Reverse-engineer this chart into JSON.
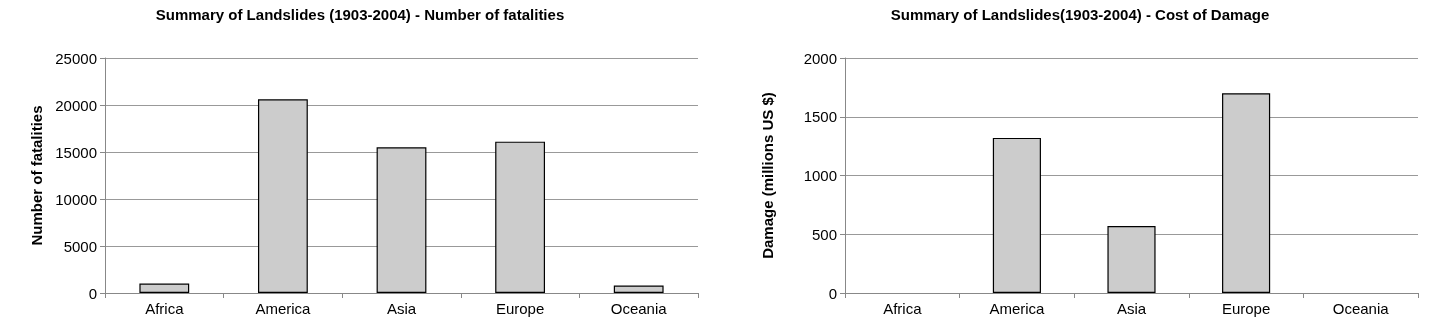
{
  "chart_data": [
    {
      "type": "bar",
      "title": "Summary of Landslides (1903-2004) - Number of fatalities",
      "ylabel": "Number of fatalities",
      "categories": [
        "Africa",
        "America",
        "Asia",
        "Europe",
        "Oceania"
      ],
      "values": [
        1000,
        20600,
        15500,
        16100,
        800
      ],
      "color": "#cccccc",
      "ylim": [
        0,
        25000
      ],
      "yticks": [
        0,
        5000,
        10000,
        15000,
        20000,
        25000
      ],
      "grid": "y"
    },
    {
      "type": "bar",
      "title": "Summary of Landslides(1903-2004) - Cost of Damage",
      "ylabel": "Damage (millions US $)",
      "categories": [
        "Africa",
        "America",
        "Asia",
        "Europe",
        "Oceania"
      ],
      "values": [
        null,
        1320,
        570,
        1700,
        null
      ],
      "color": "#cccccc",
      "ylim": [
        0,
        2000
      ],
      "yticks": [
        0,
        500,
        1000,
        1500,
        2000
      ],
      "grid": "y"
    }
  ]
}
